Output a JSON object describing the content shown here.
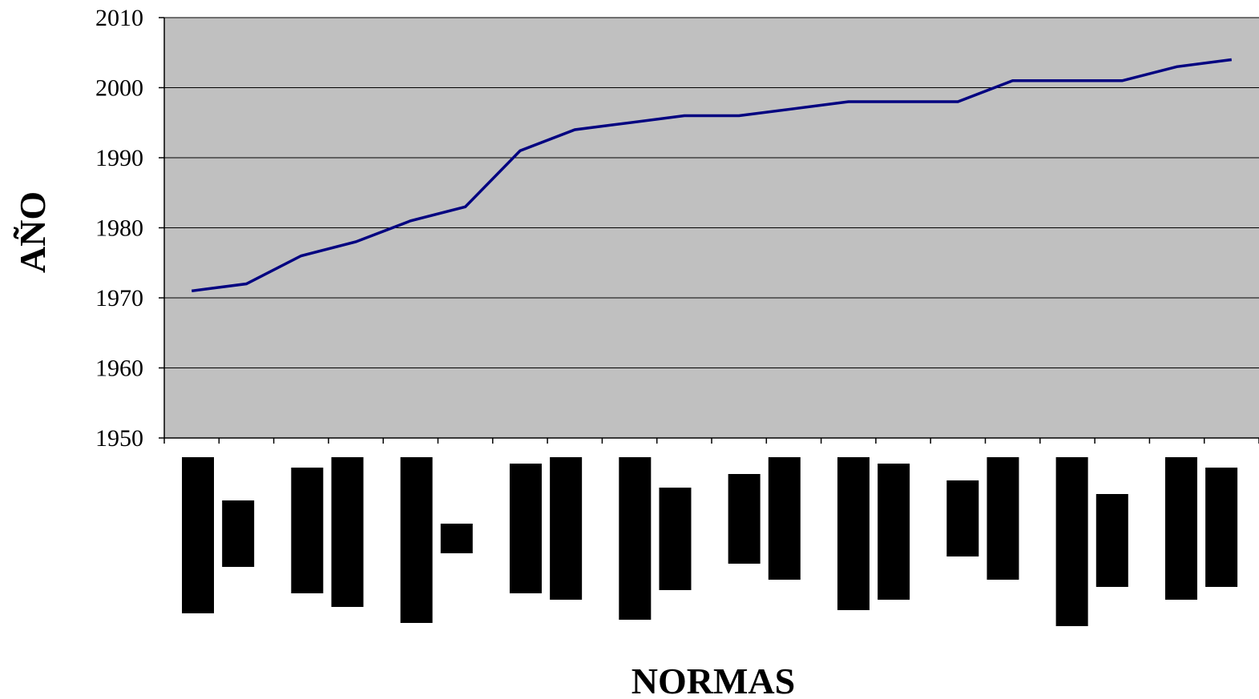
{
  "chart_data": {
    "type": "line",
    "title": "",
    "xlabel": "NORMAS",
    "ylabel": "AÑO",
    "ylim": [
      1950,
      2010
    ],
    "yticks": [
      1950,
      1960,
      1970,
      1980,
      1990,
      2000,
      2010
    ],
    "grid": true,
    "plot_background": "#c0c0c0",
    "line_color": "#000080",
    "label_redaction_color": "#000000",
    "x": [
      1,
      2,
      3,
      4,
      5,
      6,
      7,
      8,
      9,
      10,
      11,
      12,
      13,
      14,
      15,
      16,
      17,
      18,
      19,
      20
    ],
    "values": [
      1971,
      1972,
      1976,
      1978,
      1981,
      1983,
      1991,
      1994,
      1995,
      1996,
      1996,
      1997,
      1998,
      1998,
      1998,
      2001,
      2001,
      2001,
      2003,
      2004
    ]
  }
}
